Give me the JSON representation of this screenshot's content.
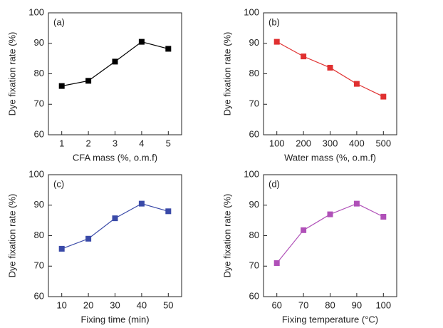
{
  "chart_data": [
    {
      "type": "line",
      "annotation": "(a)",
      "x_label": "CFA mass (%, o.m.f)",
      "y_label": "Dye fixation rate (%)",
      "x": [
        1,
        2,
        3,
        4,
        5
      ],
      "series": [
        {
          "name": "(a)",
          "color": "#000000",
          "values": [
            76,
            77.7,
            84,
            90.5,
            88.2
          ]
        }
      ],
      "xlim": [
        0.5,
        5.5
      ],
      "xticks": [
        1,
        2,
        3,
        4,
        5
      ],
      "ylim": [
        60,
        100
      ],
      "yticks": [
        60,
        70,
        80,
        90,
        100
      ]
    },
    {
      "type": "line",
      "annotation": "(b)",
      "x_label": "Water mass (%, o.m.f)",
      "y_label": "Dye fixation rate (%)",
      "x": [
        100,
        200,
        300,
        400,
        500
      ],
      "series": [
        {
          "name": "(b)",
          "color": "#e03030",
          "values": [
            90.5,
            85.7,
            82,
            76.7,
            72.5
          ]
        }
      ],
      "xlim": [
        50,
        550
      ],
      "xticks": [
        100,
        200,
        300,
        400,
        500
      ],
      "ylim": [
        60,
        100
      ],
      "yticks": [
        60,
        70,
        80,
        90,
        100
      ]
    },
    {
      "type": "line",
      "annotation": "(c)",
      "x_label": "Fixing time (min)",
      "y_label": "Dye fixation rate (%)",
      "x": [
        10,
        20,
        30,
        40,
        50
      ],
      "series": [
        {
          "name": "(c)",
          "color": "#3a4aa8",
          "values": [
            75.7,
            79,
            85.7,
            90.5,
            88
          ]
        }
      ],
      "xlim": [
        5,
        55
      ],
      "xticks": [
        10,
        20,
        30,
        40,
        50
      ],
      "ylim": [
        60,
        100
      ],
      "yticks": [
        60,
        70,
        80,
        90,
        100
      ]
    },
    {
      "type": "line",
      "annotation": "(d)",
      "x_label": "Fixing temperature (°C)",
      "y_label": "Dye fixation rate (%)",
      "x": [
        60,
        70,
        80,
        90,
        100
      ],
      "series": [
        {
          "name": "(d)",
          "color": "#b050b8",
          "values": [
            71,
            81.8,
            87,
            90.5,
            86.2
          ]
        }
      ],
      "xlim": [
        55,
        105
      ],
      "xticks": [
        60,
        70,
        80,
        90,
        100
      ],
      "ylim": [
        60,
        100
      ],
      "yticks": [
        60,
        70,
        80,
        90,
        100
      ]
    }
  ]
}
